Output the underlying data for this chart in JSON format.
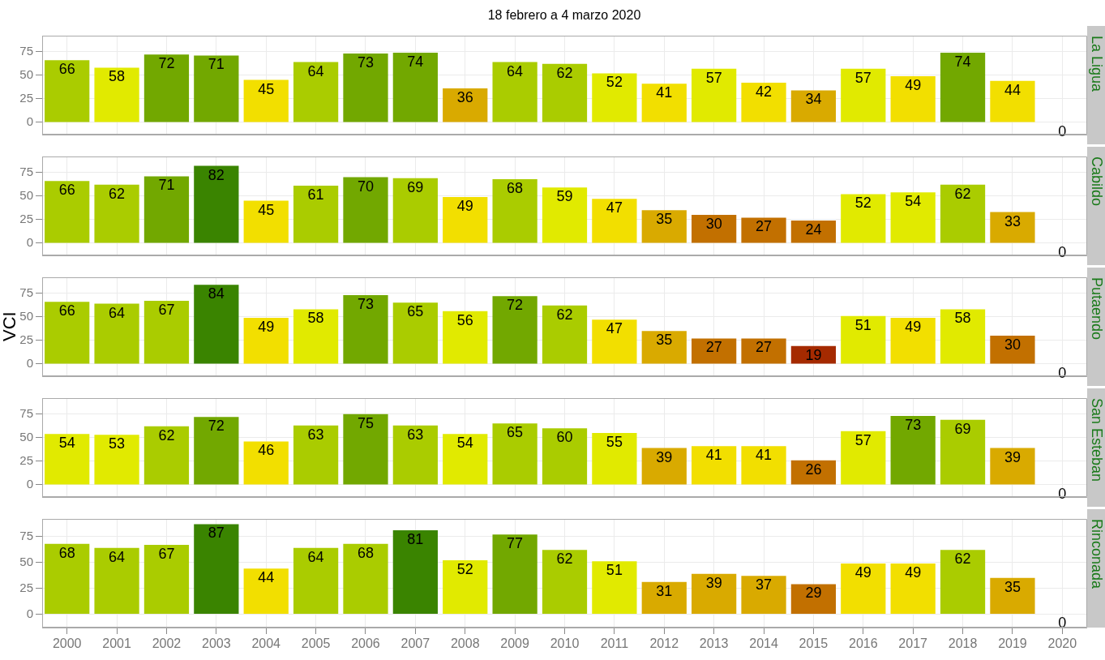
{
  "chart_data": [
    {
      "type": "bar",
      "title": "La Ligua",
      "annotations": [
        "18 febrero a 4 marzo 2020"
      ],
      "categories": [
        "2000",
        "2001",
        "2002",
        "2003",
        "2004",
        "2005",
        "2006",
        "2007",
        "2008",
        "2009",
        "2010",
        "2011",
        "2012",
        "2013",
        "2014",
        "2015",
        "2016",
        "2017",
        "2018",
        "2019",
        "2020"
      ],
      "values": [
        66,
        58,
        72,
        71,
        45,
        64,
        73,
        74,
        36,
        64,
        62,
        52,
        41,
        57,
        42,
        34,
        57,
        49,
        74,
        44,
        0
      ],
      "colors": [
        "#aacc00",
        "#e1ea00",
        "#72a800",
        "#72a800",
        "#f2df00",
        "#aacc00",
        "#72a800",
        "#72a800",
        "#d9aa00",
        "#aacc00",
        "#aacc00",
        "#e1ea00",
        "#f2df00",
        "#e1ea00",
        "#f2df00",
        "#d9aa00",
        "#e1ea00",
        "#f2df00",
        "#72a800",
        "#f2df00",
        "#a52a00"
      ],
      "ylim": [
        -13,
        92
      ],
      "yticks": [
        0,
        25,
        50,
        75
      ],
      "grid": true,
      "data_labels": true,
      "tick_labels": "y"
    },
    {
      "type": "bar",
      "title": "Cabildo",
      "categories": [
        "2000",
        "2001",
        "2002",
        "2003",
        "2004",
        "2005",
        "2006",
        "2007",
        "2008",
        "2009",
        "2010",
        "2011",
        "2012",
        "2013",
        "2014",
        "2015",
        "2016",
        "2017",
        "2018",
        "2019",
        "2020"
      ],
      "values": [
        66,
        62,
        71,
        82,
        45,
        61,
        70,
        69,
        49,
        68,
        59,
        47,
        35,
        30,
        27,
        24,
        52,
        54,
        62,
        33,
        0
      ],
      "colors": [
        "#aacc00",
        "#aacc00",
        "#72a800",
        "#3a8400",
        "#f2df00",
        "#aacc00",
        "#72a800",
        "#aacc00",
        "#f2df00",
        "#aacc00",
        "#e1ea00",
        "#f2df00",
        "#d9aa00",
        "#c27000",
        "#c27000",
        "#c27000",
        "#e1ea00",
        "#e1ea00",
        "#aacc00",
        "#d9aa00",
        "#a52a00"
      ],
      "ylim": [
        -13,
        92
      ],
      "yticks": [
        0,
        25,
        50,
        75
      ],
      "grid": true,
      "data_labels": true,
      "tick_labels": "y"
    },
    {
      "type": "bar",
      "title": "Putaendo",
      "ylabel": "VCI",
      "categories": [
        "2000",
        "2001",
        "2002",
        "2003",
        "2004",
        "2005",
        "2006",
        "2007",
        "2008",
        "2009",
        "2010",
        "2011",
        "2012",
        "2013",
        "2014",
        "2015",
        "2016",
        "2017",
        "2018",
        "2019",
        "2020"
      ],
      "values": [
        66,
        64,
        67,
        84,
        49,
        58,
        73,
        65,
        56,
        72,
        62,
        47,
        35,
        27,
        27,
        19,
        51,
        49,
        58,
        30,
        0
      ],
      "colors": [
        "#aacc00",
        "#aacc00",
        "#aacc00",
        "#3a8400",
        "#f2df00",
        "#e1ea00",
        "#72a800",
        "#aacc00",
        "#e1ea00",
        "#72a800",
        "#aacc00",
        "#f2df00",
        "#d9aa00",
        "#c27000",
        "#c27000",
        "#a52a00",
        "#e1ea00",
        "#f2df00",
        "#e1ea00",
        "#c27000",
        "#a52a00"
      ],
      "ylim": [
        -13,
        92
      ],
      "yticks": [
        0,
        25,
        50,
        75
      ],
      "grid": true,
      "data_labels": true,
      "tick_labels": "y"
    },
    {
      "type": "bar",
      "title": "San Esteban",
      "categories": [
        "2000",
        "2001",
        "2002",
        "2003",
        "2004",
        "2005",
        "2006",
        "2007",
        "2008",
        "2009",
        "2010",
        "2011",
        "2012",
        "2013",
        "2014",
        "2015",
        "2016",
        "2017",
        "2018",
        "2019",
        "2020"
      ],
      "values": [
        54,
        53,
        62,
        72,
        46,
        63,
        75,
        63,
        54,
        65,
        60,
        55,
        39,
        41,
        41,
        26,
        57,
        73,
        69,
        39,
        0
      ],
      "colors": [
        "#e1ea00",
        "#e1ea00",
        "#aacc00",
        "#72a800",
        "#f2df00",
        "#aacc00",
        "#72a800",
        "#aacc00",
        "#e1ea00",
        "#aacc00",
        "#aacc00",
        "#e1ea00",
        "#d9aa00",
        "#f2df00",
        "#f2df00",
        "#c27000",
        "#e1ea00",
        "#72a800",
        "#aacc00",
        "#d9aa00",
        "#a52a00"
      ],
      "ylim": [
        -13,
        92
      ],
      "yticks": [
        0,
        25,
        50,
        75
      ],
      "grid": true,
      "data_labels": true,
      "tick_labels": "y"
    },
    {
      "type": "bar",
      "title": "Rinconada",
      "categories": [
        "2000",
        "2001",
        "2002",
        "2003",
        "2004",
        "2005",
        "2006",
        "2007",
        "2008",
        "2009",
        "2010",
        "2011",
        "2012",
        "2013",
        "2014",
        "2015",
        "2016",
        "2017",
        "2018",
        "2019",
        "2020"
      ],
      "values": [
        68,
        64,
        67,
        87,
        44,
        64,
        68,
        81,
        52,
        77,
        62,
        51,
        31,
        39,
        37,
        29,
        49,
        49,
        62,
        35,
        0
      ],
      "colors": [
        "#aacc00",
        "#aacc00",
        "#aacc00",
        "#3a8400",
        "#f2df00",
        "#aacc00",
        "#aacc00",
        "#3a8400",
        "#e1ea00",
        "#72a800",
        "#aacc00",
        "#e1ea00",
        "#d9aa00",
        "#d9aa00",
        "#d9aa00",
        "#c27000",
        "#f2df00",
        "#f2df00",
        "#aacc00",
        "#d9aa00",
        "#a52a00"
      ],
      "ylim": [
        -13,
        92
      ],
      "yticks": [
        0,
        25,
        50,
        75
      ],
      "grid": true,
      "data_labels": true
    }
  ]
}
